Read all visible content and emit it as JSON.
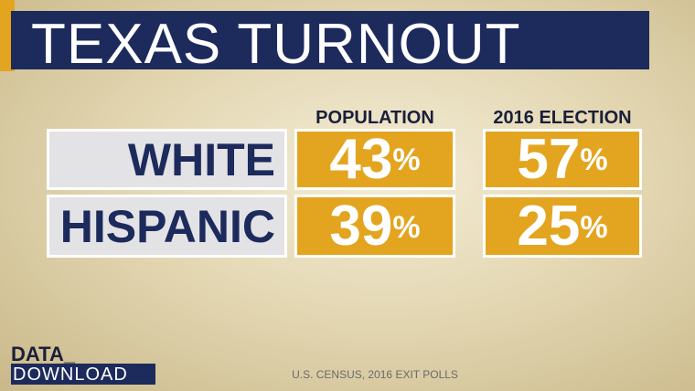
{
  "header": {
    "title": "TEXAS TURNOUT"
  },
  "table": {
    "columns": [
      "POPULATION",
      "2016 ELECTION"
    ],
    "rows": [
      [
        "WHITE",
        "43%",
        "57%"
      ],
      [
        "HISPANIC",
        "39%",
        "25%"
      ]
    ]
  },
  "footer": {
    "brand_top": "DATA_",
    "brand_bottom": "DOWNLOAD",
    "source": "U.S. CENSUS, 2016 EXIT POLLS"
  }
}
